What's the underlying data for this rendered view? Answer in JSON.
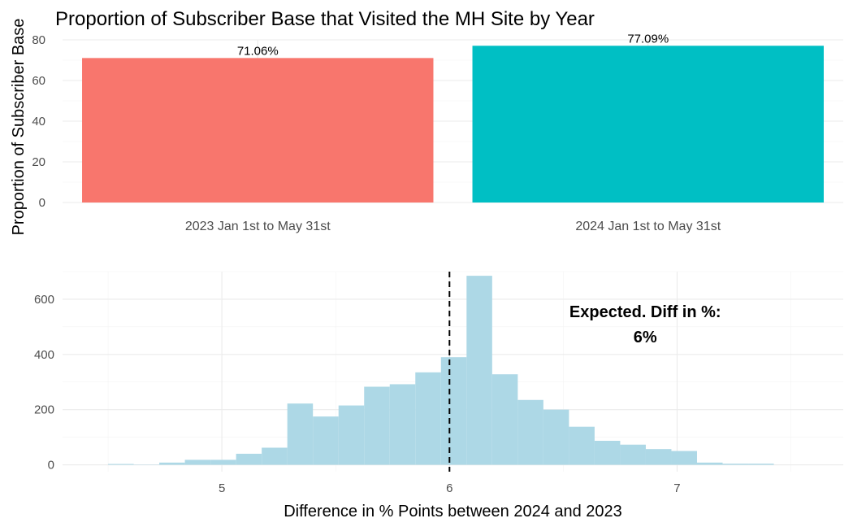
{
  "chart_data": [
    {
      "type": "bar",
      "title": "Proportion of Subscriber Base that Visited the MH Site by Year",
      "xlabel": "",
      "ylabel": "Proportion of Subscriber Base",
      "categories": [
        "2023 Jan 1st to May 31st",
        "2024 Jan 1st to May 31st"
      ],
      "values": [
        71.06,
        77.09
      ],
      "data_labels": [
        "71.06%",
        "77.09%"
      ],
      "colors": [
        "#F8766D",
        "#00BFC4"
      ],
      "ylim": [
        0,
        80
      ],
      "yticks": [
        0,
        20,
        40,
        60,
        80
      ],
      "grid": true,
      "legend": "none"
    },
    {
      "type": "histogram",
      "title": "",
      "xlabel": "Difference in % Points between 2024 and 2023",
      "ylabel": "",
      "bin_width": 0.1125,
      "bin_start": 4.5,
      "counts": [
        3,
        1,
        8,
        18,
        18,
        40,
        62,
        222,
        175,
        215,
        283,
        292,
        335,
        390,
        685,
        328,
        235,
        200,
        138,
        87,
        73,
        57,
        50,
        8,
        4,
        4
      ],
      "xlim": [
        4.3,
        7.73
      ],
      "ylim": [
        -25,
        700
      ],
      "xticks": [
        5,
        6,
        7
      ],
      "yticks": [
        0,
        200,
        400,
        600
      ],
      "bar_color": "#ADD8E6",
      "vline": 6,
      "annotation": {
        "line1": "Expected. Diff in %:",
        "line2": "6%",
        "x": 6.86,
        "y": 535
      },
      "grid": true
    }
  ]
}
